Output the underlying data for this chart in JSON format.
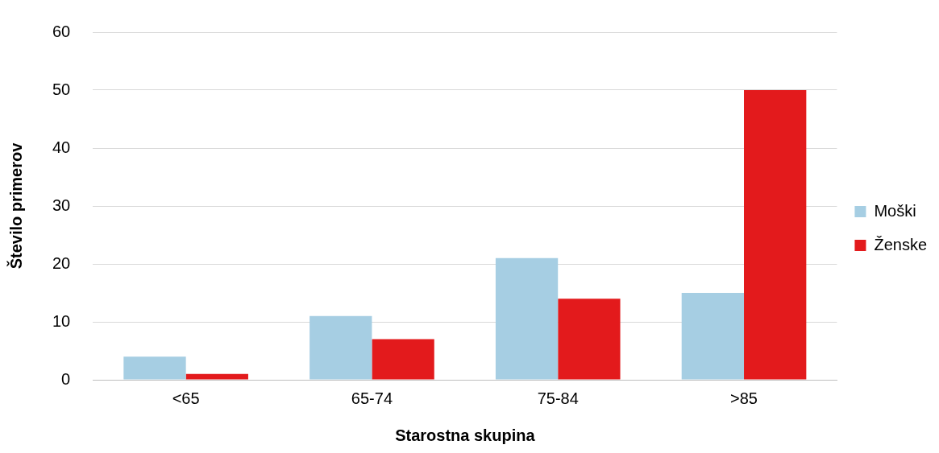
{
  "chart_data": {
    "type": "bar",
    "xlabel": "Starostna skupina",
    "ylabel": "Število primerov",
    "categories": [
      "<65",
      "65-74",
      "75-84",
      ">85"
    ],
    "series": [
      {
        "name": "Moški",
        "color": "#a6cee3",
        "values": [
          4,
          11,
          21,
          15
        ]
      },
      {
        "name": "Ženske",
        "color": "#e31a1c",
        "values": [
          1,
          7,
          14,
          50
        ]
      }
    ],
    "ylim": [
      0,
      60
    ],
    "yticks": [
      0,
      10,
      20,
      30,
      40,
      50,
      60
    ],
    "grid": "y",
    "legend": "right"
  }
}
